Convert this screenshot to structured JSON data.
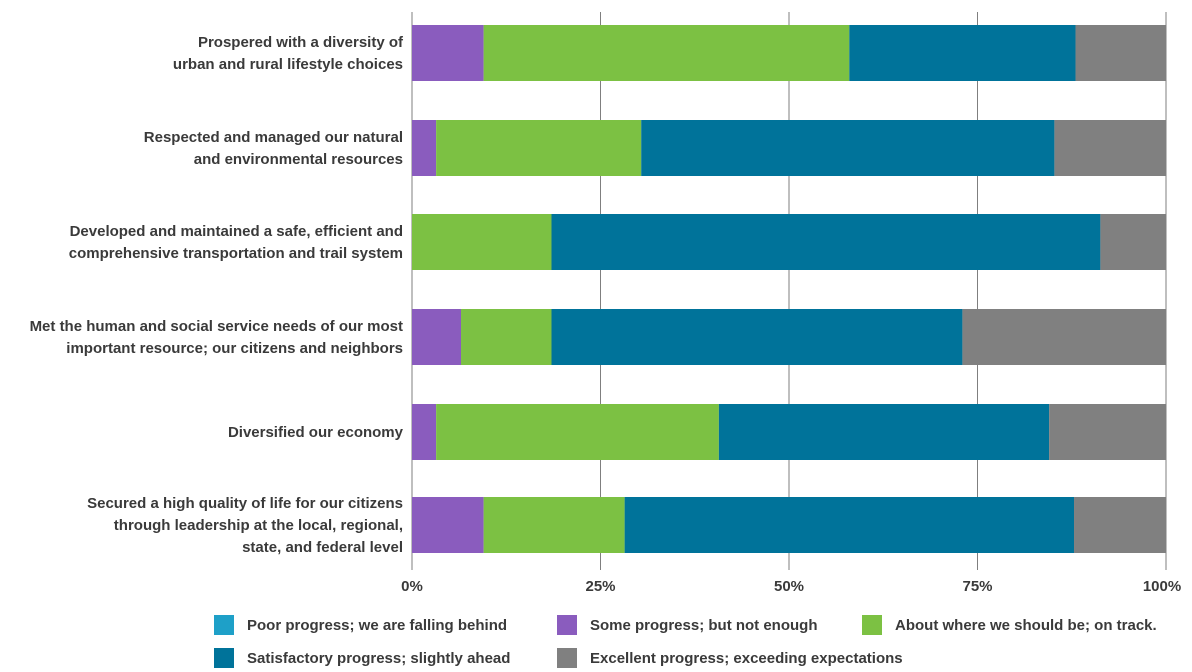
{
  "chart_data": {
    "type": "bar",
    "orientation": "horizontal",
    "stacked": true,
    "categories": [
      [
        "Prospered with a diversity of",
        "urban and rural lifestyle choices"
      ],
      [
        "Respected and managed our natural",
        "and environmental resources"
      ],
      [
        "Developed and maintained a safe, efficient and",
        "comprehensive transportation and trail system"
      ],
      [
        "Met the human and social service needs of our most",
        "important resource; our citizens and neighbors"
      ],
      [
        "Diversified our economy"
      ],
      [
        "Secured a high quality of life for our citizens",
        "through leadership at the local, regional,",
        "state, and federal level"
      ]
    ],
    "series": [
      {
        "name": "Poor progress; we are falling behind",
        "color": "#1ea0c8",
        "values": [
          0,
          0,
          0,
          0,
          0,
          0
        ]
      },
      {
        "name": "Some progress; but not enough",
        "color": "#8a5cbe",
        "values": [
          9.5,
          3.2,
          0,
          6.5,
          3.2,
          9.5
        ]
      },
      {
        "name": "About where we should be; on track.",
        "color": "#7cc143",
        "values": [
          48.5,
          27.2,
          18.5,
          12.0,
          37.5,
          18.7
        ]
      },
      {
        "name": "Satisfactory progress; slightly ahead",
        "color": "#00739a",
        "values": [
          30.0,
          54.8,
          72.8,
          54.5,
          43.8,
          59.6
        ]
      },
      {
        "name": "Excellent progress; exceeding expectations",
        "color": "#808080",
        "values": [
          12.0,
          14.8,
          8.7,
          27.0,
          15.5,
          12.2
        ]
      }
    ],
    "xlim": [
      0,
      100
    ],
    "xticks": [
      "0%",
      "25%",
      "50%",
      "75%",
      "100%"
    ],
    "grid": true,
    "legend_position": "bottom",
    "title": "",
    "xlabel": "",
    "ylabel": ""
  }
}
